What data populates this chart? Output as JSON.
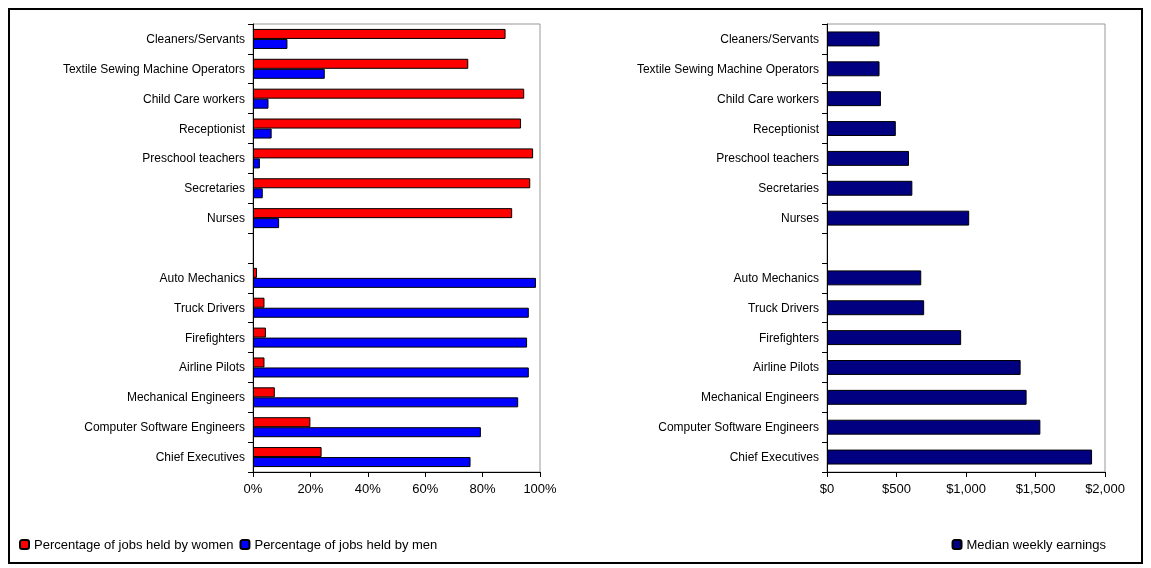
{
  "chart_data": [
    {
      "type": "bar",
      "orientation": "horizontal",
      "categories": [
        "Cleaners/Servants",
        "Textile Sewing Machine Operators",
        "Child Care workers",
        "Receptionist",
        "Preschool teachers",
        "Secretaries",
        "Nurses",
        null,
        "Auto Mechanics",
        "Truck Drivers",
        "Firefighters",
        "Airline Pilots",
        "Mechanical Engineers",
        "Computer Software Engineers",
        "Chief Executives"
      ],
      "series": [
        {
          "name": "Percentage of jobs held by women",
          "color": "#ff0000",
          "values": [
            88,
            75,
            94.5,
            93.4,
            97.6,
            96.6,
            90.3,
            null,
            1.4,
            4,
            4.5,
            4,
            7.6,
            20,
            23.9
          ]
        },
        {
          "name": "Percentage of jobs held by men",
          "color": "#0000ff",
          "values": [
            12,
            25,
            5.4,
            6.5,
            2.4,
            3.4,
            9.1,
            null,
            98.6,
            96.1,
            95.5,
            96.1,
            92.4,
            79.4,
            75.8
          ]
        }
      ],
      "xlim": [
        0,
        100
      ],
      "xticks": [
        {
          "value": 0,
          "label": "0%"
        },
        {
          "value": 20,
          "label": "20%"
        },
        {
          "value": 40,
          "label": "40%"
        },
        {
          "value": 60,
          "label": "60%"
        },
        {
          "value": 80,
          "label": "80%"
        },
        {
          "value": 100,
          "label": "100%"
        }
      ],
      "grid": false,
      "legend": "bottom left"
    },
    {
      "type": "bar",
      "orientation": "horizontal",
      "categories": [
        "Cleaners/Servants",
        "Textile Sewing Machine Operators",
        "Child Care workers",
        "Receptionist",
        "Preschool teachers",
        "Secretaries",
        "Nurses",
        null,
        "Auto Mechanics",
        "Truck Drivers",
        "Firefighters",
        "Airline Pilots",
        "Mechanical Engineers",
        "Computer Software Engineers",
        "Chief Executives"
      ],
      "series": [
        {
          "name": "Median weekly earnings",
          "color": "#000080",
          "values": [
            378,
            378,
            388,
            495,
            590,
            614,
            1023,
            null,
            678,
            699,
            965,
            1393,
            1436,
            1535,
            1907
          ]
        }
      ],
      "xlim": [
        0,
        2000
      ],
      "xticks": [
        {
          "value": 0,
          "label": "$0"
        },
        {
          "value": 500,
          "label": "$500"
        },
        {
          "value": 1000,
          "label": "$1,000"
        },
        {
          "value": 1500,
          "label": "$1,500"
        },
        {
          "value": 2000,
          "label": "$2,000"
        }
      ],
      "grid": false,
      "legend": "bottom right"
    }
  ]
}
